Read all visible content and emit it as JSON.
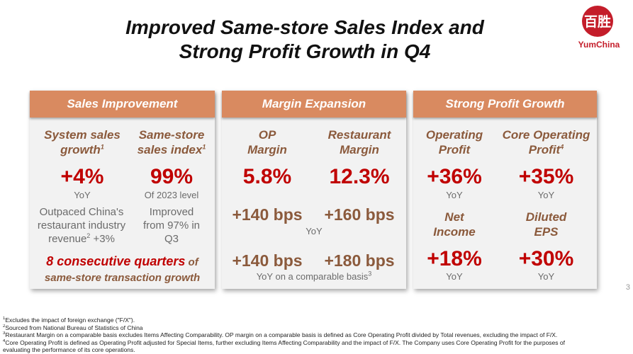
{
  "title": {
    "line1": "Improved Same-store Sales Index and",
    "line2": "Strong Profit Growth in Q4"
  },
  "logo": {
    "icon": "yumchina-logo-icon",
    "glyph": "百胜",
    "text": "YumChina"
  },
  "page_number": "3",
  "colors": {
    "accent": "#d98a60",
    "red": "#c00000",
    "brown": "#8b5a3c",
    "panel": "#f2f2f2"
  },
  "sales": {
    "header": "Sales Improvement",
    "system_label_a": "System sales",
    "system_label_b": "growth",
    "system_sup": "1",
    "system_value": "+4%",
    "system_note": "YoY",
    "system_desc_1": "Outpaced China's",
    "system_desc_2": "restaurant industry",
    "system_desc_3a": "revenue",
    "system_desc_3sup": "2",
    "system_desc_3b": " +3%",
    "sss_label_a": "Same-store",
    "sss_label_b": "sales index",
    "sss_sup": "1",
    "sss_value": "99%",
    "sss_note": "Of 2023 level",
    "sss_desc_1": "Improved",
    "sss_desc_2": "from 97% in",
    "sss_desc_3": "Q3",
    "highlight_red": "8 consecutive quarters",
    "highlight_of": " of",
    "highlight_line2": "same-store transaction growth"
  },
  "margin": {
    "header": "Margin Expansion",
    "op_label_a": "OP",
    "op_label_b": "Margin",
    "op_value": "5.8%",
    "rm_label_a": "Restaurant",
    "rm_label_b": "Margin",
    "rm_value": "12.3%",
    "op_yoy": "+140 bps",
    "rm_yoy": "+160 bps",
    "yoy_note": "YoY",
    "op_comp": "+140 bps",
    "rm_comp": "+180 bps",
    "comp_note": "YoY on a comparable basis",
    "comp_sup": "3"
  },
  "profit": {
    "header": "Strong Profit Growth",
    "op_label_a": "Operating",
    "op_label_b": "Profit",
    "op_value": "+36%",
    "op_note": "YoY",
    "core_label_a": "Core Operating",
    "core_label_b": "Profit",
    "core_sup": "4",
    "core_value": "+35%",
    "core_note": "YoY",
    "ni_label_a": "Net",
    "ni_label_b": "Income",
    "ni_value": "+18%",
    "ni_note": "YoY",
    "eps_label_a": "Diluted",
    "eps_label_b": "EPS",
    "eps_value": "+30%",
    "eps_note": "YoY"
  },
  "footnotes": [
    {
      "num": "1",
      "text": "Excludes the impact of foreign exchange (\"F/X\")."
    },
    {
      "num": "2",
      "text": "Sourced from National Bureau of Statistics of China"
    },
    {
      "num": "3",
      "text": "Restaurant Margin on a comparable basis excludes Items Affecting Comparability. OP margin on a comparable basis is defined as Core Operating Profit divided by Total revenues, excluding the impact of F/X."
    },
    {
      "num": "4",
      "text": "Core Operating Profit is defined as Operating Profit adjusted for Special Items, further excluding Items Affecting Comparability and the impact of F/X. The Company uses Core Operating Profit for the purposes of"
    },
    {
      "num": "",
      "text": "evaluating the performance of its core operations."
    }
  ]
}
